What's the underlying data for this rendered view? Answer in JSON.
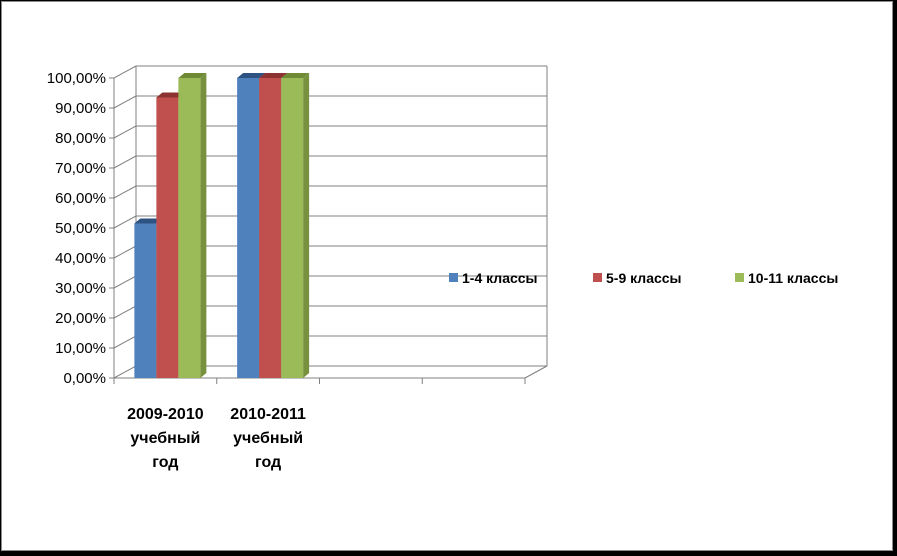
{
  "chart_data": {
    "type": "bar",
    "categories": [
      [
        "2009-2010",
        "учебный",
        "год"
      ],
      [
        "2010-2011",
        "учебный",
        "год"
      ],
      [
        "",
        "",
        ""
      ],
      [
        "",
        "",
        ""
      ]
    ],
    "series": [
      {
        "name": "1-4 классы",
        "color": "#4F81BD",
        "side": "#3B6496",
        "top": "#2E5281",
        "values": [
          51.5,
          100,
          null,
          null
        ]
      },
      {
        "name": "5-9 классы",
        "color": "#C0504D",
        "side": "#963D3B",
        "top": "#8C3230",
        "values": [
          93.5,
          100,
          null,
          null
        ]
      },
      {
        "name": "10-11 классы",
        "color": "#9BBB59",
        "side": "#78913F",
        "top": "#6E8A36",
        "values": [
          100,
          100,
          null,
          null
        ]
      }
    ],
    "yticks": [
      "0,00%",
      "10,00%",
      "20,00%",
      "30,00%",
      "40,00%",
      "50,00%",
      "60,00%",
      "70,00%",
      "80,00%",
      "90,00%",
      "100,00%"
    ],
    "ylim": [
      0,
      100
    ],
    "grid": true,
    "legend": "right"
  }
}
